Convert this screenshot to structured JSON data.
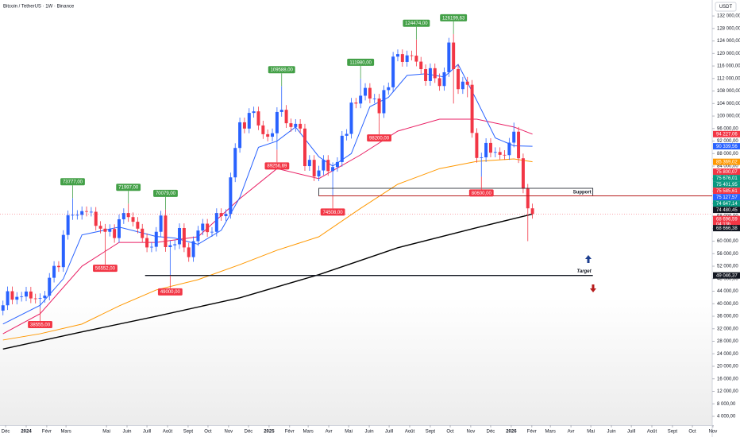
{
  "header": {
    "title": "Bitcoin / TetherUS · 1W · Binance",
    "unit": "USDT"
  },
  "chart_data": {
    "type": "candlestick",
    "up_color": "#2962ff",
    "down_color": "#f23645",
    "x": [
      -5,
      -4,
      -3,
      -2,
      -1,
      0,
      1,
      2,
      3,
      4,
      5,
      6,
      7,
      8,
      9,
      10,
      11,
      12,
      13,
      14,
      15,
      16,
      17,
      18,
      19,
      20,
      21,
      22,
      23,
      24,
      25,
      26,
      27,
      28,
      29,
      30,
      31,
      32,
      33,
      34,
      35,
      36,
      37,
      38,
      39,
      40,
      41,
      42,
      43,
      44,
      45,
      46,
      47,
      48,
      49,
      50,
      51,
      52,
      53,
      54,
      55,
      56,
      57,
      58,
      59,
      60,
      61,
      62,
      63,
      64,
      65,
      66,
      67,
      68,
      69,
      70,
      71,
      72,
      73,
      74,
      75,
      76,
      77,
      78,
      79,
      80,
      81,
      82,
      83,
      84,
      85,
      86,
      87,
      88,
      89,
      90,
      91,
      92,
      93,
      94,
      95,
      96,
      97,
      98,
      99,
      100,
      101,
      102,
      103,
      104,
      105,
      106,
      107,
      108,
      109
    ],
    "open": [
      37800,
      39500,
      44000,
      41300,
      42200,
      42300,
      43900,
      41700,
      41600,
      41800,
      42600,
      48300,
      52100,
      51700,
      62000,
      68300,
      68400,
      68400,
      69600,
      69400,
      69400,
      64900,
      64000,
      63000,
      63900,
      61000,
      67000,
      69000,
      67700,
      66200,
      64000,
      61000,
      58000,
      58200,
      63000,
      68200,
      58100,
      58700,
      59000,
      64200,
      58000,
      54900,
      60000,
      63400,
      65600,
      62900,
      63000,
      69000,
      68000,
      68700,
      80400,
      89800,
      98000,
      96000,
      101000,
      101500,
      97000,
      94200,
      93400,
      94500,
      101300,
      102000,
      97700,
      96500,
      97500,
      96000,
      84000,
      86000,
      80700,
      82600,
      86000,
      82400,
      83700,
      85300,
      93700,
      94300,
      104300,
      104000,
      106500,
      109000,
      105600,
      105600,
      100900,
      108300,
      109200,
      119000,
      119800,
      117300,
      119400,
      119300,
      117400,
      115000,
      111200,
      115300,
      112100,
      109600,
      114000,
      123500,
      115000,
      108600,
      111000,
      110000,
      94600,
      86600,
      86800,
      91400,
      88300,
      88500,
      87600,
      87500,
      91500,
      95000,
      86500,
      76800,
      70500
    ],
    "high": [
      41000,
      45500,
      45500,
      43700,
      43800,
      45400,
      45400,
      43200,
      43300,
      44100,
      49800,
      53600,
      53600,
      63500,
      69800,
      73777,
      69900,
      71100,
      71100,
      70900,
      70900,
      66400,
      65500,
      65400,
      65400,
      68500,
      70500,
      71997,
      69200,
      67700,
      65500,
      62500,
      59700,
      64500,
      69700,
      70079,
      60200,
      60500,
      65700,
      65700,
      59500,
      61500,
      64900,
      67100,
      67100,
      64500,
      70500,
      70500,
      70200,
      81900,
      91300,
      99500,
      99500,
      102500,
      103000,
      103000,
      98500,
      95700,
      96000,
      102800,
      109588,
      103500,
      99200,
      99000,
      99000,
      97500,
      87500,
      87500,
      84100,
      87500,
      87500,
      85200,
      86800,
      95200,
      95800,
      105800,
      105800,
      111980,
      110500,
      110500,
      107100,
      107100,
      109800,
      110700,
      120500,
      121300,
      121300,
      120900,
      120900,
      124474,
      118900,
      116500,
      116800,
      116800,
      113600,
      115500,
      125000,
      126199.63,
      116500,
      112500,
      112500,
      111500,
      96100,
      88300,
      92900,
      92900,
      90000,
      90000,
      89100,
      93000,
      97900,
      96500,
      88000,
      78300,
      72000
    ],
    "low": [
      36300,
      38000,
      39800,
      39800,
      40700,
      40800,
      40200,
      40100,
      38555,
      40300,
      41100,
      46800,
      50200,
      50200,
      60500,
      66800,
      66900,
      66900,
      67900,
      67900,
      63400,
      62500,
      56552,
      61500,
      59500,
      59500,
      65500,
      66200,
      64700,
      62500,
      59500,
      56500,
      56500,
      56700,
      61500,
      56600,
      49000,
      57200,
      57500,
      56500,
      53400,
      53400,
      58500,
      61900,
      61400,
      61400,
      61500,
      66500,
      66500,
      67200,
      78900,
      88300,
      94500,
      94500,
      99500,
      95500,
      92700,
      91900,
      91900,
      89256.69,
      99800,
      96200,
      95000,
      95000,
      94500,
      82500,
      82500,
      79200,
      79200,
      81100,
      80900,
      74508,
      82200,
      83800,
      92200,
      92800,
      102500,
      102500,
      105000,
      104100,
      104100,
      98200,
      99400,
      106800,
      107700,
      117500,
      115800,
      115800,
      117800,
      115900,
      113500,
      109700,
      109700,
      110600,
      108100,
      108100,
      112500,
      104000,
      107100,
      107100,
      106000,
      93100,
      85100,
      80600,
      85300,
      86800,
      86800,
      86100,
      86000,
      86000,
      90000,
      85000,
      75300,
      60000,
      67200
    ],
    "close": [
      39500,
      44000,
      41300,
      42200,
      42300,
      43900,
      41700,
      41600,
      41800,
      42600,
      48300,
      52100,
      51700,
      62000,
      68300,
      68400,
      68400,
      69600,
      69400,
      69400,
      64900,
      64000,
      63000,
      63900,
      61000,
      67000,
      69000,
      67700,
      66200,
      64000,
      61000,
      58000,
      58200,
      63000,
      68200,
      58100,
      58700,
      59000,
      64200,
      58000,
      54900,
      60000,
      63400,
      65600,
      62900,
      63000,
      69000,
      68000,
      68700,
      80400,
      89800,
      98000,
      96000,
      101000,
      101500,
      97000,
      94200,
      93400,
      94500,
      101300,
      102000,
      97700,
      96500,
      97500,
      96000,
      84000,
      86000,
      80700,
      82600,
      86000,
      82400,
      83700,
      85300,
      93700,
      94300,
      104300,
      104000,
      106500,
      109000,
      105600,
      105600,
      100900,
      108300,
      109200,
      119000,
      119800,
      117300,
      119400,
      119300,
      117400,
      115000,
      111200,
      115300,
      112100,
      109600,
      114000,
      123500,
      115000,
      108600,
      111000,
      110000,
      94600,
      86600,
      86800,
      91400,
      88300,
      88500,
      87600,
      87500,
      91500,
      95000,
      86500,
      76800,
      70500,
      68700
    ],
    "xlim": [
      -5.64,
      147.7
    ],
    "ylim": [
      1206,
      137100
    ],
    "xticks": [
      {
        "value": -4.43,
        "label": "Déc"
      },
      {
        "value": 0,
        "label": "2024"
      },
      {
        "value": 4.43,
        "label": "Févr"
      },
      {
        "value": 8.57,
        "label": "Mars"
      },
      {
        "value": 17.29,
        "label": "Mai"
      },
      {
        "value": 21.71,
        "label": "Juin"
      },
      {
        "value": 26,
        "label": "Juill"
      },
      {
        "value": 30.43,
        "label": "Août"
      },
      {
        "value": 34.86,
        "label": "Sept"
      },
      {
        "value": 39.14,
        "label": "Oct"
      },
      {
        "value": 43.57,
        "label": "Nov"
      },
      {
        "value": 47.86,
        "label": "Déc"
      },
      {
        "value": 52.29,
        "label": "2025"
      },
      {
        "value": 56.71,
        "label": "Févr"
      },
      {
        "value": 60.71,
        "label": "Mars"
      },
      {
        "value": 65.14,
        "label": "Avr"
      },
      {
        "value": 69.43,
        "label": "Mai"
      },
      {
        "value": 73.86,
        "label": "Juin"
      },
      {
        "value": 78.14,
        "label": "Juill"
      },
      {
        "value": 82.57,
        "label": "Août"
      },
      {
        "value": 87,
        "label": "Sept"
      },
      {
        "value": 91.29,
        "label": "Oct"
      },
      {
        "value": 95.71,
        "label": "Nov"
      },
      {
        "value": 100,
        "label": "Déc"
      },
      {
        "value": 104.43,
        "label": "2026"
      },
      {
        "value": 108.86,
        "label": "Févr"
      },
      {
        "value": 112.86,
        "label": "Mars"
      },
      {
        "value": 117.29,
        "label": "Avr"
      },
      {
        "value": 121.57,
        "label": "Mai"
      },
      {
        "value": 126,
        "label": "Juin"
      },
      {
        "value": 130.29,
        "label": "Juill"
      },
      {
        "value": 134.71,
        "label": "Août"
      },
      {
        "value": 139.14,
        "label": "Sept"
      },
      {
        "value": 143.43,
        "label": "Oct"
      },
      {
        "value": 147.86,
        "label": "Nov"
      }
    ],
    "yticks": [
      {
        "value": 4000,
        "label": "4 000,00"
      },
      {
        "value": 8000,
        "label": "8 000,00"
      },
      {
        "value": 12000,
        "label": "12 000,00"
      },
      {
        "value": 16000,
        "label": "16 000,00"
      },
      {
        "value": 20000,
        "label": "20 000,00"
      },
      {
        "value": 24000,
        "label": "24 000,00"
      },
      {
        "value": 28000,
        "label": "28 000,00"
      },
      {
        "value": 32000,
        "label": "32 000,00"
      },
      {
        "value": 36000,
        "label": "36 000,00"
      },
      {
        "value": 40000,
        "label": "40 000,00"
      },
      {
        "value": 44000,
        "label": "44 000,00"
      },
      {
        "value": 48000,
        "label": "48 000,00"
      },
      {
        "value": 52000,
        "label": "52 000,00"
      },
      {
        "value": 56000,
        "label": "56 000,00"
      },
      {
        "value": 60000,
        "label": "60 000,00"
      },
      {
        "value": 64000,
        "label": "64 000,00"
      },
      {
        "value": 68000,
        "label": "68 000,00"
      },
      {
        "value": 72000,
        "label": "72 000,00"
      },
      {
        "value": 76000,
        "label": "76 000,00"
      },
      {
        "value": 80000,
        "label": "80 000,00"
      },
      {
        "value": 84000,
        "label": "84 000,00"
      },
      {
        "value": 88000,
        "label": "88 000,00"
      },
      {
        "value": 92000,
        "label": "92 000,00"
      },
      {
        "value": 96000,
        "label": "96 000,00"
      },
      {
        "value": 100000,
        "label": "100 000,00"
      },
      {
        "value": 104000,
        "label": "104 000,00"
      },
      {
        "value": 108000,
        "label": "108 000,00"
      },
      {
        "value": 112000,
        "label": "112 000,00"
      },
      {
        "value": 116000,
        "label": "116 000,00"
      },
      {
        "value": 120000,
        "label": "120 000,00"
      },
      {
        "value": 124000,
        "label": "124 000,00"
      },
      {
        "value": 128000,
        "label": "128 000,00"
      },
      {
        "value": 132000,
        "label": "132 000,00"
      }
    ],
    "lines": [
      {
        "color": "#000000",
        "x": [
          -5,
          12,
          28,
          46,
          63,
          80,
          97,
          109
        ],
        "values": [
          25500,
          31000,
          36000,
          41900,
          49300,
          57900,
          64300,
          68666.38
        ]
      },
      {
        "color": "#ff9800",
        "x": [
          -5,
          3,
          12,
          20,
          28,
          37,
          46,
          54,
          63,
          72,
          80,
          89,
          97,
          105,
          109
        ],
        "values": [
          28400,
          30400,
          33500,
          39300,
          44400,
          47700,
          52500,
          57100,
          61400,
          70500,
          78200,
          83200,
          85500,
          86300,
          85369.02
        ]
      },
      {
        "color": "#e91e63",
        "x": [
          -5,
          3,
          12,
          20,
          28,
          37,
          46,
          54,
          63,
          72,
          80,
          89,
          97,
          105,
          109
        ],
        "values": [
          30400,
          36800,
          52000,
          59600,
          59600,
          61400,
          73600,
          83200,
          80000,
          87600,
          95200,
          99000,
          99000,
          96500,
          94227.06
        ]
      },
      {
        "color": "#2962ff",
        "x": [
          -5,
          3,
          8,
          12,
          20,
          28,
          32,
          37,
          42,
          46,
          50,
          54,
          58,
          63,
          66,
          70,
          74,
          78,
          82,
          86,
          90,
          93,
          97,
          101,
          105,
          109
        ],
        "values": [
          33500,
          39500,
          48000,
          62000,
          64500,
          61500,
          61000,
          59000,
          63500,
          74000,
          90000,
          92000,
          96500,
          87000,
          84000,
          88000,
          103000,
          106000,
          113000,
          113500,
          112500,
          116500,
          105000,
          93000,
          90500,
          90339.56
        ]
      }
    ],
    "highs": [
      {
        "x": 10,
        "value": 73777,
        "label": "73777,00"
      },
      {
        "x": 22,
        "value": 71997,
        "label": "71997,00"
      },
      {
        "x": 30,
        "value": 70079,
        "label": "70079,00"
      },
      {
        "x": 55,
        "value": 109588,
        "label": "109588,00"
      },
      {
        "x": 72,
        "value": 111980,
        "label": "111980,00"
      },
      {
        "x": 84,
        "value": 124474,
        "label": "124474,00"
      },
      {
        "x": 92,
        "value": 126199.63,
        "label": "126199,63"
      }
    ],
    "lows": [
      {
        "x": 3,
        "value": 38555,
        "label": "38555,00"
      },
      {
        "x": 17,
        "value": 56552,
        "label": "56552,00"
      },
      {
        "x": 31,
        "value": 49000,
        "label": "49000,00"
      },
      {
        "x": 54,
        "value": 89256.69,
        "label": "89256,69"
      },
      {
        "x": 66,
        "value": 74508,
        "label": "74508,00"
      },
      {
        "x": 76,
        "value": 98200,
        "label": "98200,00"
      },
      {
        "x": 98,
        "value": 80600,
        "label": "80600,00"
      }
    ],
    "support": {
      "label": "Support",
      "x": [
        63,
        122
      ],
      "values": [
        74480.45,
        76900
      ]
    },
    "target": {
      "label": "Target",
      "x": [
        25.6,
        122
      ],
      "value": 49046.37
    },
    "price_labels": [
      {
        "value": 94227.06,
        "label": "94 227,06",
        "color": "#f23645"
      },
      {
        "value": 90339.56,
        "label": "90 339,56",
        "color": "#2962ff"
      },
      {
        "value": 85369.02,
        "label": "85 369,02",
        "color": "#ff9800"
      },
      {
        "value": 75800.07,
        "label": "75 800,07",
        "color": "#f23645"
      },
      {
        "value": 75676.01,
        "label": "75 676,01",
        "color": "#089981"
      },
      {
        "value": 75401.95,
        "label": "75 401,95",
        "color": "#089981"
      },
      {
        "value": 75585.61,
        "label": "75 585,61",
        "color": "#f23645"
      },
      {
        "value": 75127.57,
        "label": "75 127,57",
        "color": "#2962ff"
      },
      {
        "value": 74647.14,
        "label": "74 647,14",
        "color": "#089981"
      },
      {
        "value": 74480.45,
        "label": "74 480,45",
        "color": "#131722"
      },
      {
        "value": 68696.59,
        "label": "68 696,59",
        "sub": "04:13h",
        "color": "#f23645"
      },
      {
        "value": 68666.38,
        "label": "68 666,38",
        "color": "#131722"
      },
      {
        "value": 49046.37,
        "label": "49 046,37",
        "color": "#131722"
      }
    ],
    "high_color": "#43a047",
    "low_color": "#f23645"
  }
}
